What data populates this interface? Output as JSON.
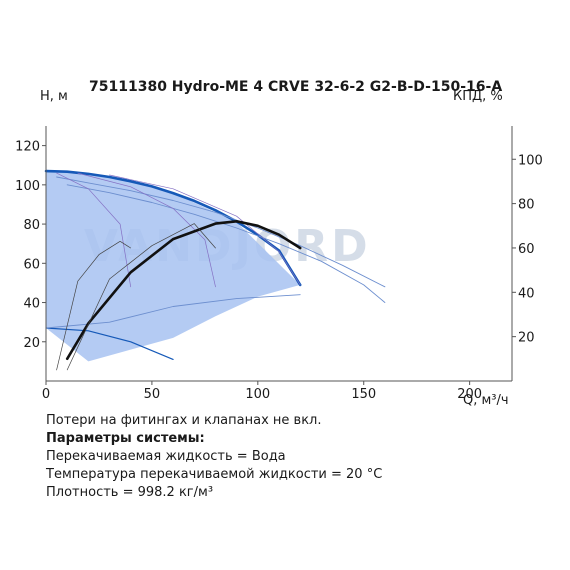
{
  "watermark": "VANDJORD",
  "chart_data": {
    "type": "line",
    "title": "75111380 Hydro-ME 4 CRVE 32-6-2 G2-B-D-150-16-A",
    "ylabel_left": "H, м",
    "ylabel_right": "КПД, %",
    "xlabel": "Q, м³/ч",
    "xlim": [
      0,
      220
    ],
    "ylim_left": [
      0,
      130
    ],
    "ylim_right": [
      0,
      115
    ],
    "x_ticks": [
      0,
      50,
      100,
      150,
      200
    ],
    "y_ticks_left": [
      20,
      40,
      60,
      80,
      100,
      120
    ],
    "y_ticks_right": [
      20,
      40,
      60,
      80,
      100
    ],
    "grid": false,
    "colors": {
      "area": "#a7c2f1",
      "max_head": "#1559b8",
      "thin": "#6d8fcf",
      "minor": "#8470c4",
      "efficiency": "#111111",
      "efficiency_thin": "#444444"
    },
    "operating_area": [
      [
        0,
        107
      ],
      [
        10,
        106.7
      ],
      [
        30,
        104
      ],
      [
        60,
        96
      ],
      [
        90,
        81
      ],
      [
        120,
        49
      ],
      [
        100,
        43
      ],
      [
        80,
        33
      ],
      [
        60,
        22
      ],
      [
        20,
        10
      ],
      [
        0,
        27
      ]
    ],
    "series": [
      {
        "role": "max_head",
        "x": [
          0,
          10,
          20,
          30,
          40,
          50,
          60,
          70,
          80,
          90,
          100,
          110,
          120
        ],
        "y": [
          107,
          106.7,
          105.6,
          104,
          101.8,
          99.2,
          95.8,
          91.8,
          87,
          81.3,
          74.5,
          66.5,
          49
        ]
      },
      {
        "role": "min_head",
        "x": [
          0,
          20,
          40,
          60
        ],
        "y": [
          27,
          25.6,
          20,
          11
        ]
      },
      {
        "role": "reduced_speed",
        "x": [
          5,
          20,
          40,
          60,
          80,
          100,
          120,
          140,
          160
        ],
        "y": [
          104,
          101,
          97,
          92,
          86,
          78,
          69,
          59,
          48
        ]
      },
      {
        "role": "reduced_speed",
        "x": [
          10,
          30,
          50,
          70,
          90,
          110,
          130,
          150,
          160
        ],
        "y": [
          100,
          96,
          91,
          85,
          78,
          70,
          61,
          49,
          40
        ]
      },
      {
        "role": "system_curve",
        "x": [
          0,
          30,
          60,
          90,
          120
        ],
        "y": [
          27,
          30,
          38,
          42,
          44
        ]
      },
      {
        "role": "minor",
        "x": [
          5,
          20,
          35,
          40
        ],
        "y": [
          106,
          98,
          80,
          48
        ]
      },
      {
        "role": "minor",
        "x": [
          15,
          40,
          60,
          75,
          80
        ],
        "y": [
          106,
          99,
          88,
          72,
          48
        ]
      },
      {
        "role": "minor",
        "x": [
          30,
          60,
          90,
          110,
          120
        ],
        "y": [
          105,
          98,
          84,
          66,
          49
        ]
      },
      {
        "role": "efficiency",
        "axis": "right",
        "x": [
          10,
          20,
          40,
          60,
          80,
          90,
          100,
          110,
          120
        ],
        "y": [
          10,
          26,
          49,
          64,
          71,
          72,
          70,
          66,
          60
        ]
      },
      {
        "role": "efficiency_thin",
        "axis": "right",
        "x": [
          5,
          15,
          25,
          35,
          40
        ],
        "y": [
          5,
          45,
          57,
          63,
          60
        ]
      },
      {
        "role": "efficiency_thin",
        "axis": "right",
        "x": [
          10,
          30,
          50,
          70,
          80
        ],
        "y": [
          5,
          46,
          61,
          71,
          60
        ]
      }
    ]
  },
  "notes": {
    "line1": "Потери на фитингах и клапанах не вкл.",
    "heading": "Параметры системы:",
    "line2": "Перекачиваемая жидкость = Вода",
    "line3": "Температура перекачиваемой жидкости = 20 °C",
    "line4": "Плотность = 998.2 кг/м³"
  }
}
